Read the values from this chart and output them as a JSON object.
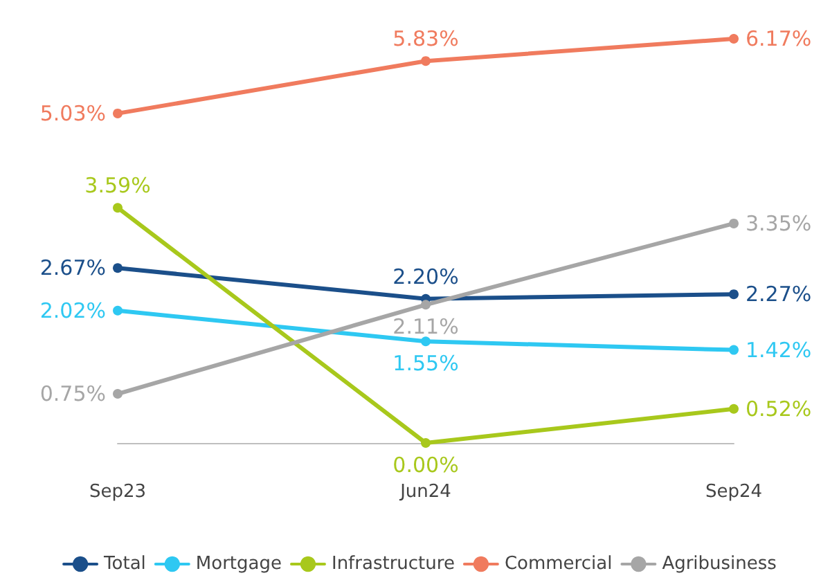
{
  "chart_data": {
    "type": "line",
    "categories": [
      "Sep23",
      "Jun24",
      "Sep24"
    ],
    "series": [
      {
        "name": "Total",
        "color": "#1b4f8a",
        "values": [
          2.67,
          2.2,
          2.27
        ],
        "value_labels": [
          "2.67%",
          "2.20%",
          "2.27%"
        ]
      },
      {
        "name": "Mortgage",
        "color": "#2ec8f2",
        "values": [
          2.02,
          1.55,
          1.42
        ],
        "value_labels": [
          "2.02%",
          "1.55%",
          "1.42%"
        ]
      },
      {
        "name": "Infrastructure",
        "color": "#a8c81c",
        "values": [
          3.59,
          0.0,
          0.52
        ],
        "value_labels": [
          "3.59%",
          "0.00%",
          "0.52%"
        ]
      },
      {
        "name": "Commercial",
        "color": "#f07b5e",
        "values": [
          5.03,
          5.83,
          6.17
        ],
        "value_labels": [
          "5.03%",
          "5.83%",
          "6.17%"
        ]
      },
      {
        "name": "Agribusiness",
        "color": "#a6a6a6",
        "values": [
          0.75,
          2.11,
          3.35
        ],
        "value_labels": [
          "0.75%",
          "2.11%",
          "3.35%"
        ]
      }
    ],
    "marker": "circle",
    "line_style": "solid",
    "grid": false,
    "legend": "bottom"
  }
}
